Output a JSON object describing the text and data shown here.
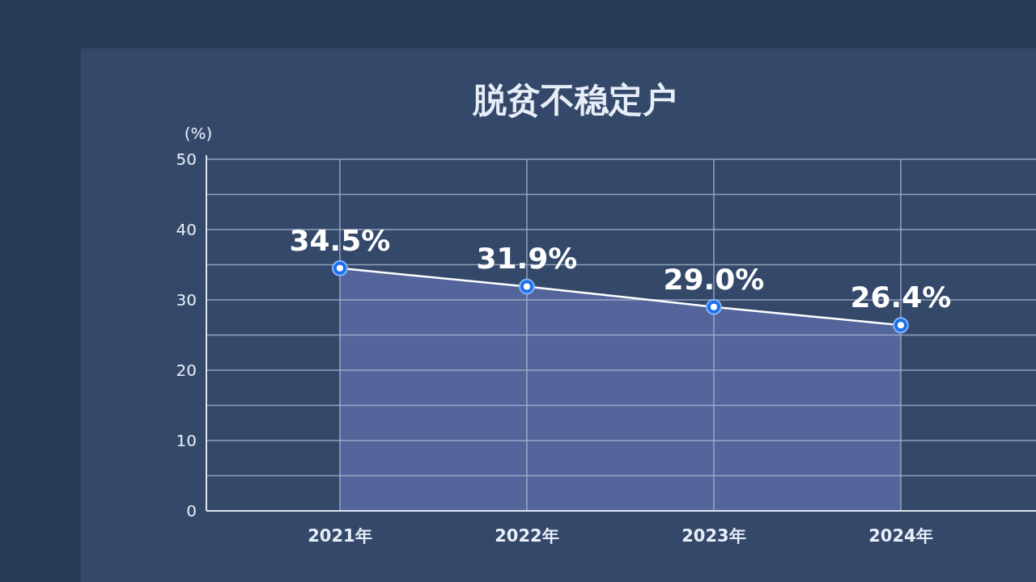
{
  "chart_data": {
    "type": "area",
    "title": "脱贫不稳定户",
    "ylabel": "(%)",
    "categories": [
      "2021年",
      "2022年",
      "2023年",
      "2024年"
    ],
    "series": [
      {
        "color": "#5a6aa3",
        "values": [
          34.5,
          31.9,
          29.0,
          26.4
        ],
        "value_labels": [
          "34.5%",
          "31.9%",
          "29.0%",
          "26.4%"
        ]
      }
    ],
    "ylim": [
      0,
      50
    ],
    "yticks": [
      0,
      {
        "value": 5,
        "label": null
      },
      10,
      {
        "value": 15,
        "label": null
      },
      20,
      {
        "value": 25,
        "label": null
      },
      30,
      {
        "value": 35,
        "label": null
      },
      40,
      {
        "value": 45,
        "label": null
      },
      50
    ],
    "grid": true,
    "marker": "circle"
  }
}
